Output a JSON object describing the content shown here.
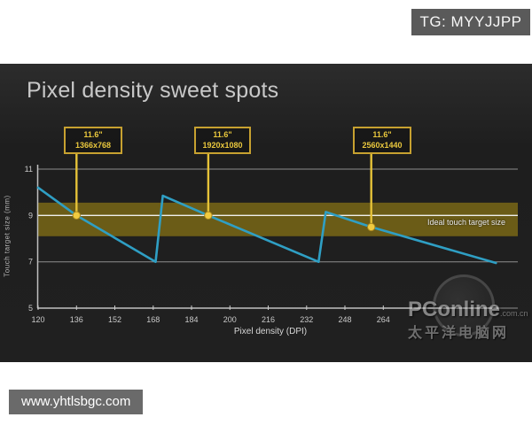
{
  "overlays": {
    "tg_badge": "TG: MYYJJPP",
    "site_badge": "www.yhtlsbgc.com",
    "pconline_logo": "PConline",
    "pconline_suffix": ".com.cn",
    "pconline_chinese": "太平洋电脑网"
  },
  "slide": {
    "title": "Pixel density sweet spots"
  },
  "chart_data": {
    "type": "line",
    "title": "Pixel density sweet spots",
    "xlabel": "Pixel density (DPI)",
    "ylabel": "Touch target size (mm)",
    "xlim": [
      120,
      312
    ],
    "ylim": [
      5,
      11
    ],
    "x_ticks": [
      120,
      136,
      152,
      168,
      184,
      200,
      216,
      232,
      248,
      264
    ],
    "y_ticks": [
      11,
      9,
      7,
      5
    ],
    "grid": true,
    "legend_position": "none",
    "colors": {
      "line": "#2f9fc4",
      "accent": "#e5c238",
      "band": "#6b5c17",
      "grid": "#8d8d8d",
      "ideal_line": "#efefec",
      "axis": "#c0c0c0",
      "tick_text": "#c9c9c9"
    },
    "ideal_band": {
      "from": 8.1,
      "to": 9.55,
      "label": "Ideal touch target size"
    },
    "series": [
      {
        "name": "Touch target size (mm)",
        "points": [
          [
            120,
            10.2
          ],
          [
            136,
            9.0
          ],
          [
            169,
            7.0
          ],
          [
            172,
            9.85
          ],
          [
            191,
            9.0
          ],
          [
            237,
            7.0
          ],
          [
            240,
            9.15
          ],
          [
            259,
            8.5
          ],
          [
            311,
            6.95
          ]
        ]
      }
    ],
    "callouts": [
      {
        "line1": "11.6\"",
        "line2": "1366x768",
        "dpi": 136,
        "value": 9.0
      },
      {
        "line1": "11.6\"",
        "line2": "1920x1080",
        "dpi": 191,
        "value": 9.0
      },
      {
        "line1": "11.6\"",
        "line2": "2560x1440",
        "dpi": 259,
        "value": 8.5
      }
    ]
  }
}
